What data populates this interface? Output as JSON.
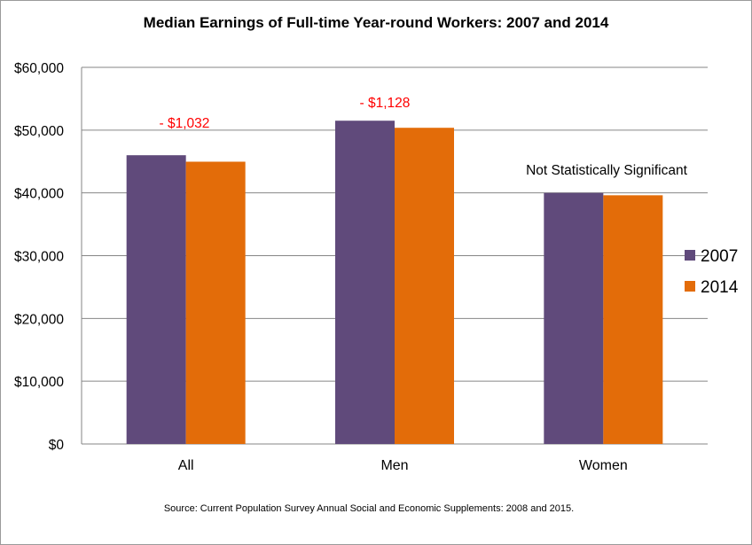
{
  "chart_data": {
    "type": "bar",
    "title": "Median Earnings of Full-time Year-round Workers:  2007 and 2014",
    "categories": [
      "All",
      "Men",
      "Women"
    ],
    "series": [
      {
        "name": "2007",
        "color": "#604a7b",
        "values": [
          46000,
          51500,
          40000
        ]
      },
      {
        "name": "2014",
        "color": "#e36c09",
        "values": [
          44968,
          50372,
          39621
        ]
      }
    ],
    "ylim": [
      0,
      60000
    ],
    "yticks": [
      0,
      10000,
      20000,
      30000,
      40000,
      50000,
      60000
    ],
    "ytick_labels": [
      "$0",
      "$10,000",
      "$20,000",
      "$30,000",
      "$40,000",
      "$50,000",
      "$60,000"
    ],
    "grid": true,
    "legend_position": "right",
    "annotations": [
      {
        "text": "- $1,032",
        "category": "All",
        "color": "#ff0000"
      },
      {
        "text": "- $1,128",
        "category": "Men",
        "color": "#ff0000"
      },
      {
        "text": "Not Statistically Significant",
        "category": "Women",
        "color": "#000000"
      }
    ],
    "source": "Source:  Current Population Survey Annual Social and Economic Supplements:  2008 and 2015."
  }
}
